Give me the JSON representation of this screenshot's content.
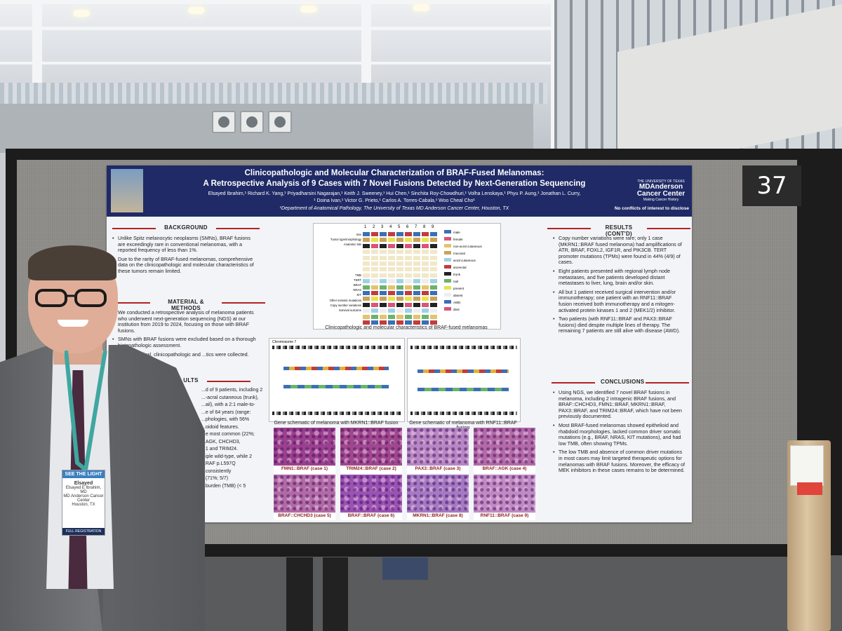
{
  "board": {
    "number": "37"
  },
  "poster": {
    "title_line1": "Clinicopathologic and Molecular Characterization of BRAF-Fused Melanomas:",
    "title_line2": "A Retrospective Analysis of 9 Cases with 7 Novel Fusions Detected by Next-Generation Sequencing",
    "authors_line1": "Elsayed Ibrahim,¹ Richard K. Yang,¹ Priyadharsini Nagarajan,¹ Keith J. Sweeney,¹ Hui Chen,¹ Sinchita Roy-Chowdhuri,¹ Volha Lenskaya,¹ Phyu P. Aung,¹ Jonathan L. Curry,",
    "authors_line2": "¹ Doina Ivan,¹ Victor G. Prieto,¹ Carlos A. Torres-Cabala,¹ Woo Cheal Cho¹",
    "affiliation": "¹Department of Anatomical Pathology, The University of Texas MD Anderson Cancer Center, Houston, TX",
    "logo_small": "THE UNIVERSITY OF TEXAS",
    "logo_name": "MDAnderson Cancer Center",
    "logo_tag": "Making Cancer History",
    "coi": "No conflicts of interest to disclose",
    "sections": {
      "background": "BACKGROUND",
      "methods": "MATERIAL & METHODS",
      "results_cont": "RESULTS (CONT'D)",
      "conclusions": "CONCLUSIONS",
      "results_partial": "ULTS"
    },
    "background_bullets": [
      "Unlike Spitz melanocytic neoplasms (SMNs), BRAF fusions are exceedingly rare in conventional melanomas, with a reported frequency of less than 1%.",
      "Due to the rarity of BRAF-fused melanomas, comprehensive data on the clinicopathologic and molecular characteristics of these tumors remain limited."
    ],
    "methods_text": "We conducted a retrospective analysis of melanoma patients who underwent next-generation sequencing (NGS) at our institution from 2019 to 2024, focusing on those with BRAF fusions.",
    "methods_bullets": [
      "SMNs with BRAF fusions were excluded based on a thorough histopathologic assessment.",
      "demographical, clinicopathologic and ...tics were collected."
    ],
    "results_partial_lines": [
      "...d of 9 patients, including 2",
      "...-acral cutaneous (trunk),",
      "...ail), with a 2:1 male-to-",
      "...e of 64 years (range:",
      "...phologies, with 56%",
      "...oidoid features.",
      "...e most common (22%;",
      "...AGK, CHCHD3,",
      "...1 and TRIM24.",
      "...iple wild-type, while 2",
      "...RAF p.L597Q",
      "...consistently",
      "...(71%; 5/7)",
      "...burden (TMB) (< 5"
    ],
    "results_cont_bullets": [
      "Copy number variations were rare; only 1 case (MKRN1::BRAF fused melanoma) had amplifications of ATR, BRAF, FOXL2, IGF1R, and PIK3CB. TERT promoter mutations (TPMs) were found in 44% (4/9) of cases.",
      "Eight patients presented with regional lymph node metastases, and five patients developed distant metastases to liver, lung, brain and/or skin.",
      "All but 1 patient received surgical intervention and/or immunotherapy; one patient with an RNF11::BRAF fusion received both immunotherapy and a mitogen-activated protein kinases 1 and 2 (MEK1/2) inhibitor.",
      "Two patients (with RNF11::BRAF and PAX3::BRAF fusions) died despite multiple lines of therapy. The remaining 7 patients are still alive with disease (AWD)."
    ],
    "conclusions_bullets": [
      "Using NGS, we identified 7 novel BRAF fusions in melanoma, including 2 intragenic BRAF fusions, and BRAF::CHCHD3, FMN1::BRAF, MKRN1::BRAF, PAX3::BRAF, and TRIM24::BRAF, which have not been previously documented.",
      "Most BRAF-fused melanomas showed epithelioid and rhabdoid morphologies, lacked common driver somatic mutations (e.g., BRAF, NRAS, KIT mutations), and had low TMB, often showing TPMs.",
      "The low TMB and absence of common driver mutations in most cases may limit targeted therapeutic options for melanomas with BRAF fusions. Moreover, the efficacy of MEK inhibitors in these cases remains to be determined."
    ],
    "matrix_caption": "Clinicopathologic and molecular characteristics of BRAF-fused melanomas",
    "matrix_cols": [
      "1",
      "2",
      "3",
      "4",
      "5",
      "6",
      "7",
      "8",
      "9"
    ],
    "matrix_rows": [
      "Sex",
      "Tumor type/morphology",
      "Anatomic site",
      "",
      "",
      "",
      "",
      "",
      "TMB",
      "TERT",
      "BRAF",
      "NRAS",
      "KIT",
      "Other somatic mutations",
      "Copy number variations",
      "Survival outcome"
    ],
    "matrix_legend": [
      "male",
      "female",
      "non-acral cutaneous",
      "mucosal",
      "acral cutaneous",
      "anorectal",
      "trunk",
      "nail",
      "present",
      "absent",
      "AWD",
      "died"
    ],
    "schematic_left_caption": "Gene schematic of melanoma with MKRN1::BRAF fusion",
    "schematic_right_caption": "Gene schematic of melanoma with RNF11::BRAF fusion",
    "chromosome_label": "Chromosome 7",
    "histology_captions": [
      "FMN1::BRAF (case 1)",
      "TRIM24::BRAF (case 2)",
      "PAX3::BRAF (case 3)",
      "BRAF::AGK (case 4)",
      "BRAF::CHCHD3 (case 5)",
      "BRAF::BRAF (case 6)",
      "MKRN1::BRAF (case 8)",
      "RNF11::BRAF (case 9)"
    ]
  },
  "badge": {
    "header": "SEE THE LIGHT",
    "name": "Elsayed",
    "fullname": "Elsayed E Ibrahim, MD",
    "org": "MD Anderson Cancer Center",
    "city": "Houston, TX",
    "footer": "FULL REGISTRATION"
  },
  "colors": {
    "poster_header": "#1f2a66",
    "section_rule": "#b22222",
    "histo_he": "#b05aa8"
  }
}
